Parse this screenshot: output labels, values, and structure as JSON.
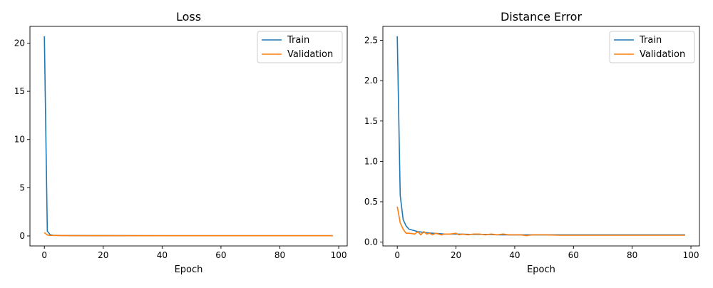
{
  "colors": {
    "train": "#1f77b4",
    "validation": "#ff7f0e"
  },
  "chart_data": [
    {
      "type": "line",
      "title": "Loss",
      "xlabel": "Epoch",
      "ylabel": "",
      "xlim": [
        -4.9,
        102.9
      ],
      "ylim": [
        -1.035,
        21.735
      ],
      "xticks": [
        0,
        20,
        40,
        60,
        80,
        100
      ],
      "yticks": [
        0,
        5,
        10,
        15,
        20
      ],
      "xtick_labels": [
        "0",
        "20",
        "40",
        "60",
        "80",
        "100"
      ],
      "ytick_labels": [
        "0",
        "5",
        "10",
        "15",
        "20"
      ],
      "legend_position": "top-right",
      "series": [
        {
          "name": "Train",
          "color_key": "train",
          "x": [
            0,
            1,
            2,
            3,
            5,
            10,
            20,
            40,
            60,
            80,
            98
          ],
          "y": [
            20.7,
            0.5,
            0.12,
            0.07,
            0.05,
            0.04,
            0.03,
            0.025,
            0.02,
            0.02,
            0.02
          ]
        },
        {
          "name": "Validation",
          "color_key": "validation",
          "x": [
            0,
            1,
            2,
            3,
            5,
            10,
            20,
            40,
            60,
            80,
            98
          ],
          "y": [
            0.35,
            0.1,
            0.06,
            0.05,
            0.04,
            0.035,
            0.03,
            0.025,
            0.02,
            0.02,
            0.02
          ]
        }
      ]
    },
    {
      "type": "line",
      "title": "Distance Error",
      "xlabel": "Epoch",
      "ylabel": "",
      "xlim": [
        -4.9,
        102.9
      ],
      "ylim": [
        -0.0475,
        2.6725
      ],
      "xticks": [
        0,
        20,
        40,
        60,
        80,
        100
      ],
      "yticks": [
        0.0,
        0.5,
        1.0,
        1.5,
        2.0,
        2.5
      ],
      "xtick_labels": [
        "0",
        "20",
        "40",
        "60",
        "80",
        "100"
      ],
      "ytick_labels": [
        "0.0",
        "0.5",
        "1.0",
        "1.5",
        "2.0",
        "2.5"
      ],
      "legend_position": "top-right",
      "series": [
        {
          "name": "Train",
          "color_key": "train",
          "x": [
            0,
            1,
            2,
            3,
            4,
            5,
            6,
            7,
            8,
            9,
            10,
            12,
            14,
            16,
            18,
            20,
            25,
            30,
            35,
            40,
            45,
            50,
            55,
            60,
            65,
            70,
            75,
            80,
            85,
            90,
            95,
            98
          ],
          "y": [
            2.55,
            0.58,
            0.28,
            0.2,
            0.16,
            0.15,
            0.14,
            0.13,
            0.125,
            0.12,
            0.115,
            0.11,
            0.105,
            0.1,
            0.1,
            0.1,
            0.095,
            0.095,
            0.09,
            0.09,
            0.09,
            0.09,
            0.09,
            0.09,
            0.09,
            0.09,
            0.09,
            0.09,
            0.09,
            0.09,
            0.09,
            0.09
          ]
        },
        {
          "name": "Validation",
          "color_key": "validation",
          "x": [
            0,
            1,
            2,
            3,
            4,
            5,
            6,
            7,
            8,
            9,
            10,
            11,
            12,
            13,
            14,
            15,
            16,
            18,
            20,
            21,
            22,
            24,
            26,
            28,
            30,
            32,
            34,
            36,
            38,
            40,
            42,
            44,
            46,
            48,
            50,
            55,
            60,
            65,
            70,
            75,
            80,
            85,
            90,
            95,
            98
          ],
          "y": [
            0.44,
            0.24,
            0.16,
            0.11,
            0.11,
            0.105,
            0.1,
            0.13,
            0.09,
            0.13,
            0.1,
            0.11,
            0.09,
            0.11,
            0.1,
            0.09,
            0.1,
            0.1,
            0.11,
            0.09,
            0.1,
            0.09,
            0.1,
            0.1,
            0.09,
            0.1,
            0.09,
            0.1,
            0.09,
            0.09,
            0.09,
            0.08,
            0.09,
            0.09,
            0.09,
            0.085,
            0.085,
            0.085,
            0.085,
            0.085,
            0.085,
            0.085,
            0.085,
            0.085,
            0.085
          ]
        }
      ]
    }
  ]
}
